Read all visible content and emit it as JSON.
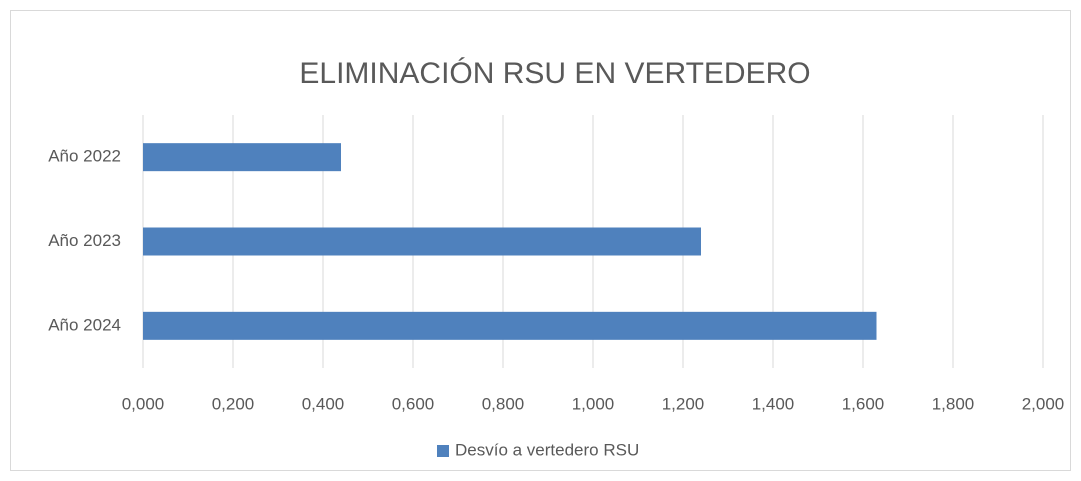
{
  "chart_data": {
    "type": "bar",
    "orientation": "horizontal",
    "title": "ELIMINACIÓN RSU EN VERTEDERO",
    "categories": [
      "Año 2022",
      "Año 2023",
      "Año 2024"
    ],
    "series": [
      {
        "name": "Desvío a vertedero RSU",
        "color": "#4f81bd",
        "values": [
          0.44,
          1.24,
          1.63
        ]
      }
    ],
    "xlim": [
      0,
      2
    ],
    "xticks": [
      {
        "value": 0,
        "label": "0,000"
      },
      {
        "value": 0.2,
        "label": "0,200"
      },
      {
        "value": 0.4,
        "label": "0,400"
      },
      {
        "value": 0.6,
        "label": "0,600"
      },
      {
        "value": 0.8,
        "label": "0,800"
      },
      {
        "value": 1,
        "label": "1,000"
      },
      {
        "value": 1.2,
        "label": "1,200"
      },
      {
        "value": 1.4,
        "label": "1,400"
      },
      {
        "value": 1.6,
        "label": "1,600"
      },
      {
        "value": 1.8,
        "label": "1,800"
      },
      {
        "value": 2,
        "label": "2,000"
      }
    ],
    "grid": true,
    "legend": "bottom"
  }
}
